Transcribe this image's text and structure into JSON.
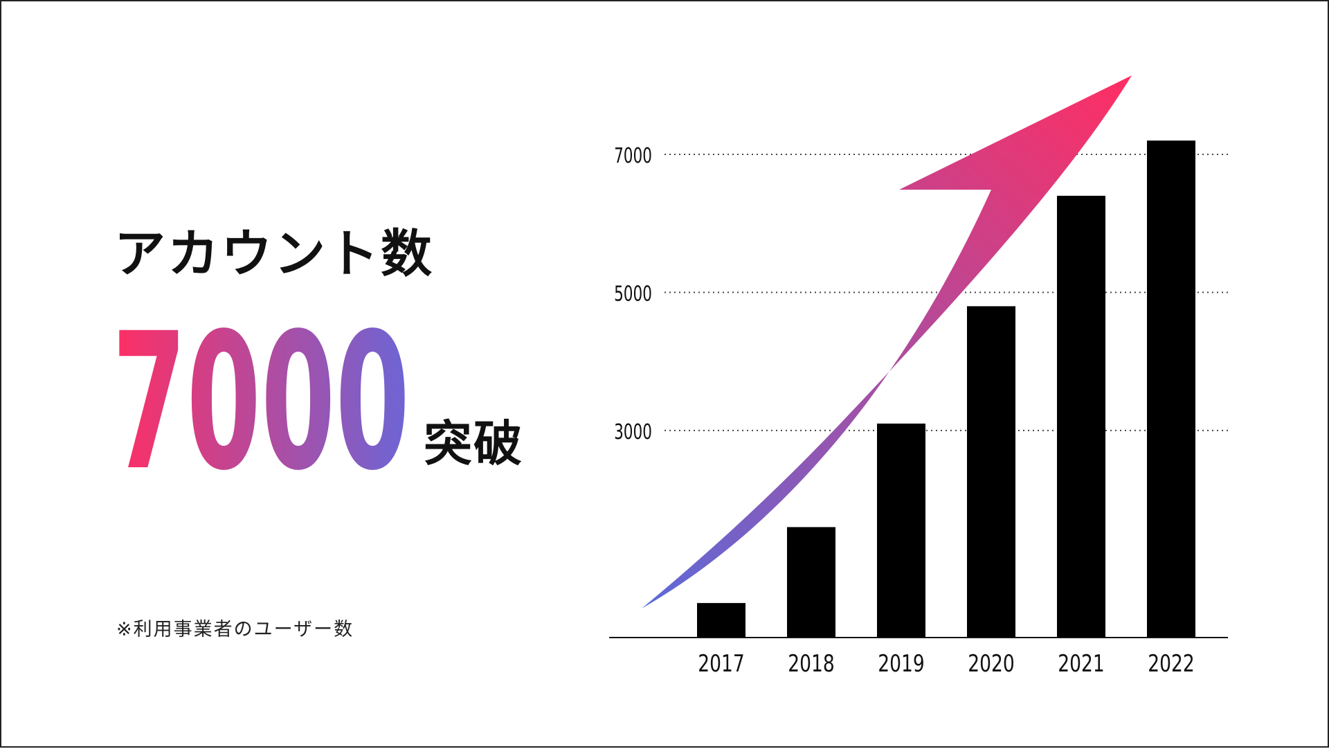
{
  "headline": "アカウント数",
  "highlight": {
    "number": "7000",
    "suffix": "突破",
    "gradient_colors": [
      "#ff2e63",
      "#6b66d6"
    ]
  },
  "footnote": "※利用事業者のユーザー数",
  "arrow_colors": [
    "#ff2e63",
    "#5d6ad8"
  ],
  "bar_color": "#000000",
  "chart_data": {
    "type": "bar",
    "categories": [
      "2017",
      "2018",
      "2019",
      "2020",
      "2021",
      "2022"
    ],
    "values": [
      500,
      1600,
      3100,
      4800,
      6400,
      7200
    ],
    "yticks": [
      3000,
      5000,
      7000
    ],
    "ylim": [
      0,
      7000
    ],
    "grid": "dotted horizontal lines at ticks",
    "title": "",
    "xlabel": "",
    "ylabel": ""
  }
}
